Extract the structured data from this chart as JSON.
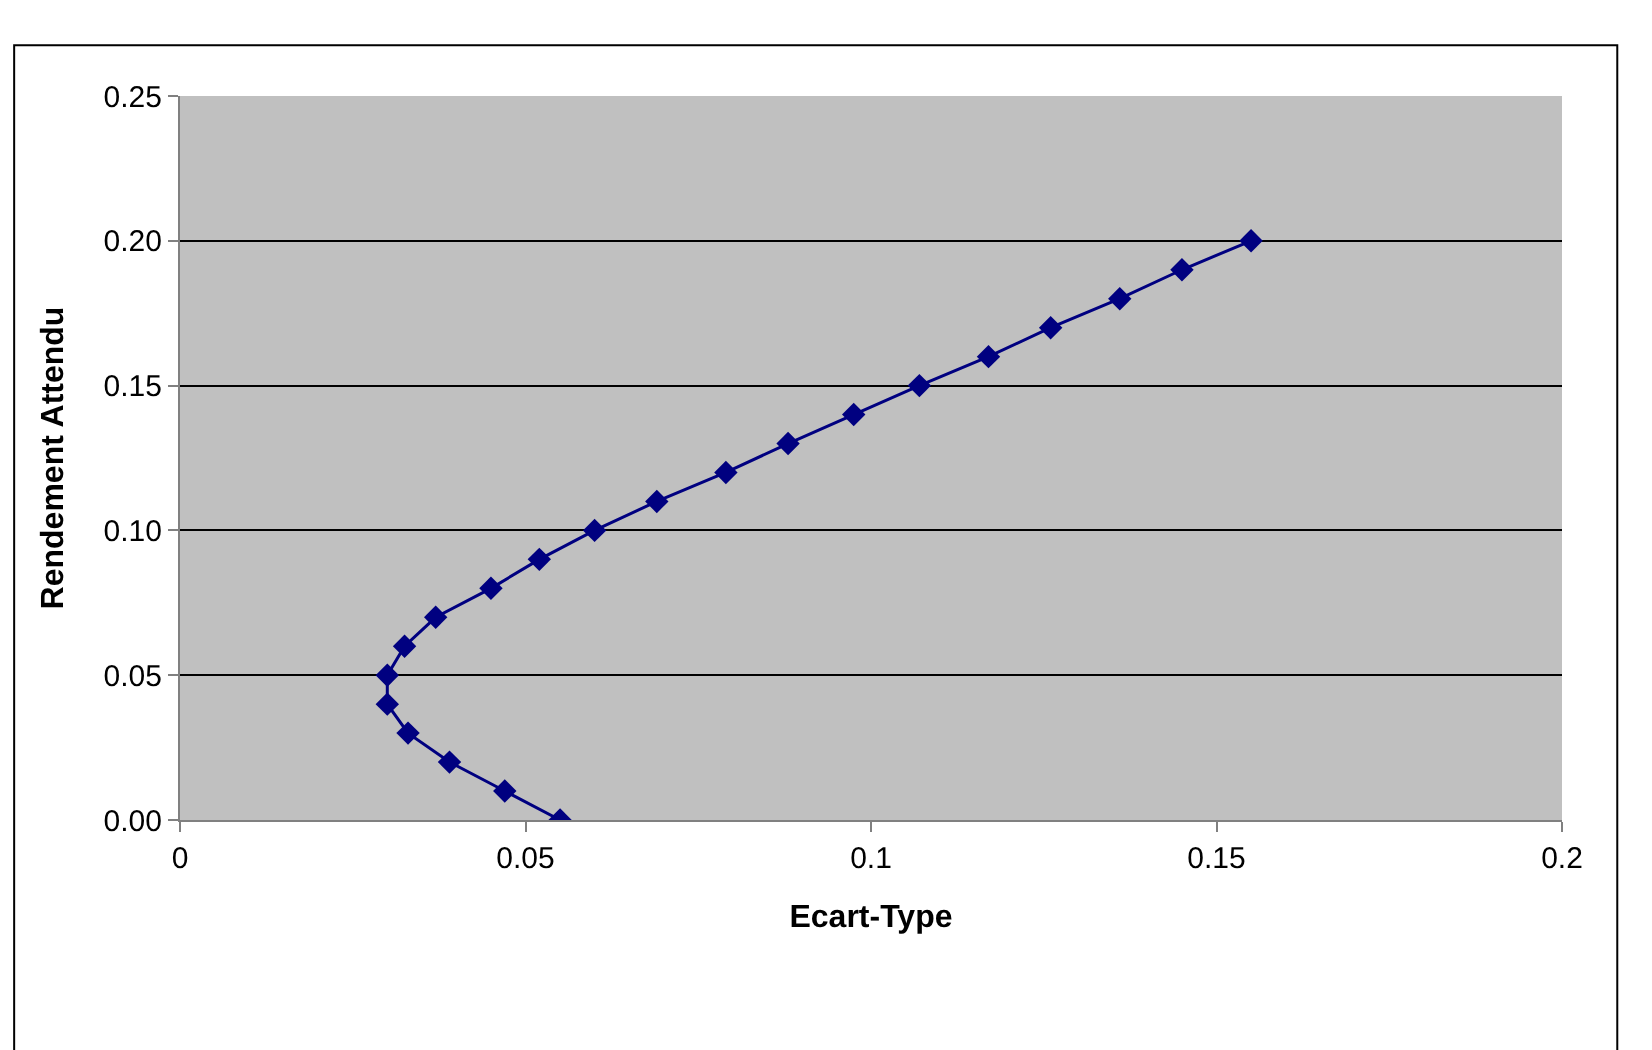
{
  "chart_data": {
    "type": "line",
    "xlabel": "Ecart-Type",
    "ylabel": "Rendement Attendu",
    "series": [
      {
        "color": "#000080",
        "x": [
          0.055,
          0.047,
          0.039,
          0.033,
          0.03,
          0.03,
          0.0325,
          0.037,
          0.045,
          0.052,
          0.06,
          0.069,
          0.079,
          0.088,
          0.0975,
          0.107,
          0.117,
          0.126,
          0.136,
          0.145,
          0.155
        ],
        "values": [
          0.0,
          0.01,
          0.02,
          0.03,
          0.04,
          0.05,
          0.06,
          0.07,
          0.08,
          0.09,
          0.1,
          0.11,
          0.12,
          0.13,
          0.14,
          0.15,
          0.16,
          0.17,
          0.18,
          0.19,
          0.2
        ]
      }
    ],
    "xlim": [
      0,
      0.2
    ],
    "xticks": [
      0,
      0.05,
      0.1,
      0.15,
      0.2
    ],
    "ylim": [
      0,
      0.25
    ],
    "yticks": [
      {
        "value": 0,
        "label": "0.00"
      },
      {
        "value": 0.05,
        "label": "0.05"
      },
      {
        "value": 0.1,
        "label": "0.10"
      },
      {
        "value": 0.15,
        "label": "0.15"
      },
      {
        "value": 0.2,
        "label": "0.20"
      },
      {
        "value": 0.25,
        "label": "0.25"
      }
    ],
    "grid": "y",
    "marker": "diamond",
    "line_style": "solid",
    "legend": false
  }
}
